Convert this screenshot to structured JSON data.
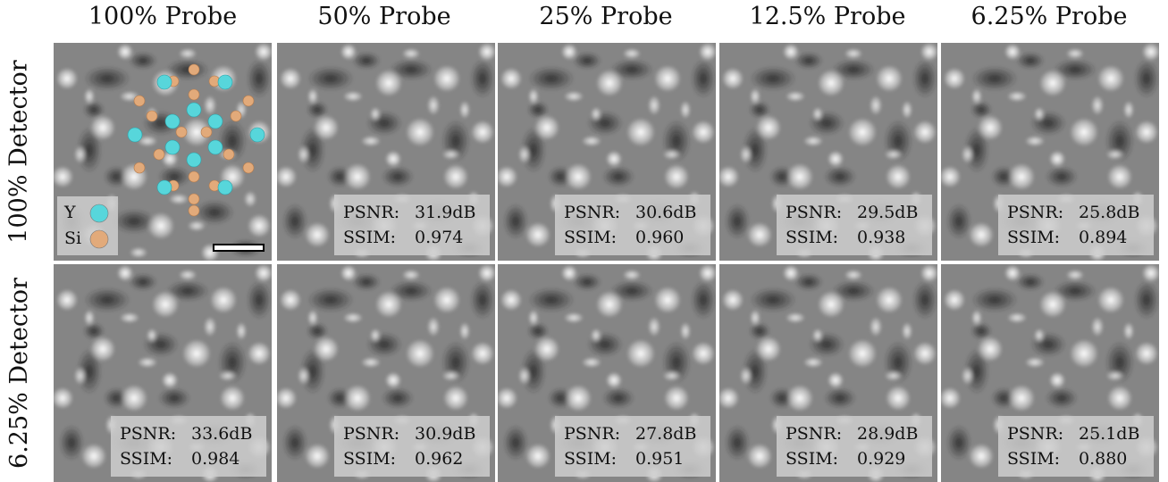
{
  "column_titles": [
    "100% Probe",
    "50% Probe",
    "25% Probe",
    "12.5% Probe",
    "6.25% Probe"
  ],
  "row_titles": [
    "100% Detector",
    "6.25% Detector"
  ],
  "legend": {
    "items": [
      {
        "label": "Y",
        "color": "#57d6db"
      },
      {
        "label": "Si",
        "color": "#e2aa7a"
      }
    ]
  },
  "rows": [
    {
      "panels": [
        {
          "reference": true
        },
        {
          "psnr_label": "PSNR:",
          "psnr": "31.9dB",
          "ssim_label": "SSIM:",
          "ssim": "0.974"
        },
        {
          "psnr_label": "PSNR:",
          "psnr": "30.6dB",
          "ssim_label": "SSIM:",
          "ssim": "0.960"
        },
        {
          "psnr_label": "PSNR:",
          "psnr": "29.5dB",
          "ssim_label": "SSIM:",
          "ssim": "0.938"
        },
        {
          "psnr_label": "PSNR:",
          "psnr": "25.8dB",
          "ssim_label": "SSIM:",
          "ssim": "0.894"
        }
      ]
    },
    {
      "panels": [
        {
          "psnr_label": "PSNR:",
          "psnr": "33.6dB",
          "ssim_label": "SSIM:",
          "ssim": "0.984"
        },
        {
          "psnr_label": "PSNR:",
          "psnr": "30.9dB",
          "ssim_label": "SSIM:",
          "ssim": "0.962"
        },
        {
          "psnr_label": "PSNR:",
          "psnr": "27.8dB",
          "ssim_label": "SSIM:",
          "ssim": "0.951"
        },
        {
          "psnr_label": "PSNR:",
          "psnr": "28.9dB",
          "ssim_label": "SSIM:",
          "ssim": "0.929"
        },
        {
          "psnr_label": "PSNR:",
          "psnr": "25.1dB",
          "ssim_label": "SSIM:",
          "ssim": "0.880"
        }
      ]
    }
  ]
}
